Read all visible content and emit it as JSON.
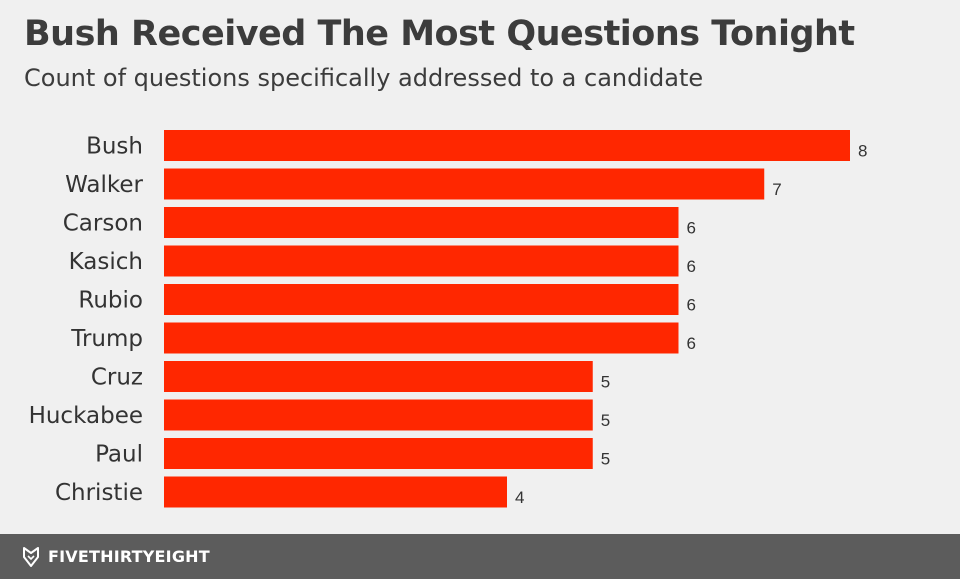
{
  "header": {
    "title": "Bush Received The Most Questions Tonight",
    "subtitle": "Count of questions specifically addressed to a candidate"
  },
  "footer": {
    "brand": "FIVETHIRTYEIGHT",
    "logo_icon": "fox-icon"
  },
  "colors": {
    "bar": "#ff2700",
    "background": "#f0f0f0",
    "footer": "#5c5c5c"
  },
  "chart_data": {
    "type": "bar",
    "orientation": "horizontal",
    "categories": [
      "Bush",
      "Walker",
      "Carson",
      "Kasich",
      "Rubio",
      "Trump",
      "Cruz",
      "Huckabee",
      "Paul",
      "Christie"
    ],
    "values": [
      8,
      7,
      6,
      6,
      6,
      6,
      5,
      5,
      5,
      4
    ],
    "title": "Bush Received The Most Questions Tonight",
    "subtitle": "Count of questions specifically addressed to a candidate",
    "xlabel": "",
    "ylabel": "",
    "xlim": [
      0,
      8
    ],
    "grid": false,
    "data_labels": true
  }
}
